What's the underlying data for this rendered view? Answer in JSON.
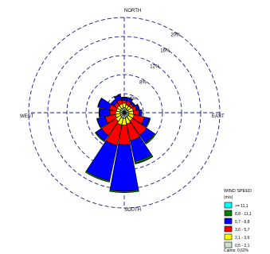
{
  "chart_data": {
    "type": "wind-rose",
    "unit": "%",
    "directions_deg": [
      0,
      22.5,
      45,
      67.5,
      90,
      112.5,
      135,
      157.5,
      180,
      202.5,
      225,
      247.5,
      270,
      292.5,
      315,
      337.5
    ],
    "compass_labels": {
      "north": "NORTH",
      "east": "EAST",
      "south": "SOUTH",
      "west": "WEST"
    },
    "rings": [
      {
        "value": 4,
        "label": "4%"
      },
      {
        "value": 8,
        "label": "8%"
      },
      {
        "value": 12,
        "label": "12%"
      },
      {
        "value": 16,
        "label": "16%"
      },
      {
        "value": 20,
        "label": "20%"
      }
    ],
    "legend": {
      "title": "WIND SPEED",
      "subtitle": "(m/s)",
      "calms": "Calms: 0,62%"
    },
    "series": [
      {
        "name": "0,5 - 2,1",
        "color": "#c8e6c8",
        "values": [
          1.1,
          0.9,
          0.9,
          0.9,
          1.0,
          1.0,
          1.0,
          1.1,
          1.2,
          1.2,
          1.0,
          0.9,
          0.9,
          0.9,
          1.0,
          1.0
        ]
      },
      {
        "name": "2,1 - 3,6",
        "color": "#ffff00",
        "values": [
          0.9,
          0.8,
          0.8,
          1.0,
          0.9,
          1.1,
          1.1,
          1.3,
          1.4,
          1.4,
          1.2,
          1.0,
          0.9,
          0.8,
          0.8,
          0.9
        ]
      },
      {
        "name": "3,6 - 5,7",
        "color": "#ff0000",
        "values": [
          0.6,
          0.8,
          0.6,
          0.7,
          1.2,
          2.2,
          3.6,
          3.6,
          4.1,
          4.4,
          3.6,
          2.2,
          1.2,
          1.5,
          0.8,
          0.9
        ]
      },
      {
        "name": "5,7 - 8,8",
        "color": "#0000ff",
        "values": [
          0.6,
          0.8,
          0.4,
          0.6,
          0.5,
          1.1,
          2.0,
          4.5,
          9.8,
          7.6,
          1.4,
          1.7,
          2.2,
          2.4,
          0.8,
          1.0
        ]
      },
      {
        "name": "8,8 - 11,1",
        "color": "#008000",
        "values": [
          0.1,
          0.0,
          0.1,
          0.1,
          0.1,
          0.2,
          0.3,
          0.4,
          0.3,
          0.3,
          0.2,
          0.1,
          0.1,
          0.1,
          0.0,
          0.1
        ]
      },
      {
        "name": ">= 11,1",
        "color": "#00ffff",
        "values": [
          0.0,
          0.0,
          0.0,
          0.0,
          0.0,
          0.0,
          0.0,
          0.1,
          0.0,
          0.0,
          0.0,
          0.0,
          0.0,
          0.0,
          0.0,
          0.0
        ]
      }
    ]
  }
}
